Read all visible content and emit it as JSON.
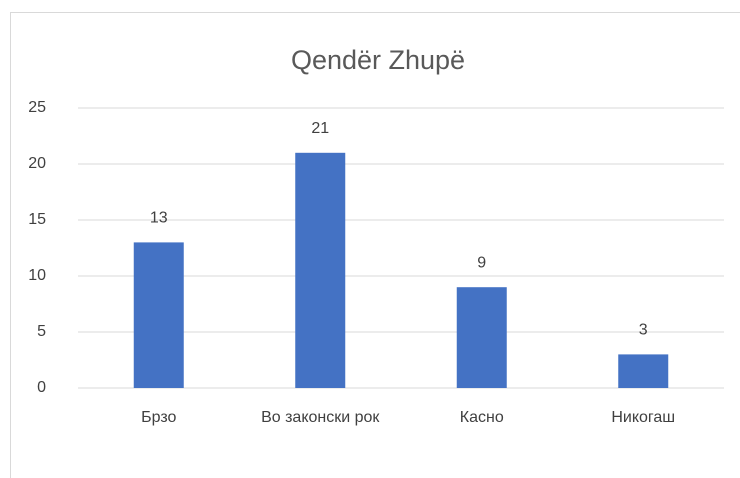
{
  "chart_data": {
    "type": "bar",
    "title": "Qendër Zhupë",
    "categories": [
      "Брзо",
      "Во законски рок",
      "Касно",
      "Никогаш"
    ],
    "values": [
      13,
      21,
      9,
      3
    ],
    "color": "#4472c4",
    "ylim": [
      0,
      25
    ],
    "yticks": [
      0,
      5,
      10,
      15,
      20,
      25
    ],
    "grid": true,
    "data_labels": true
  }
}
